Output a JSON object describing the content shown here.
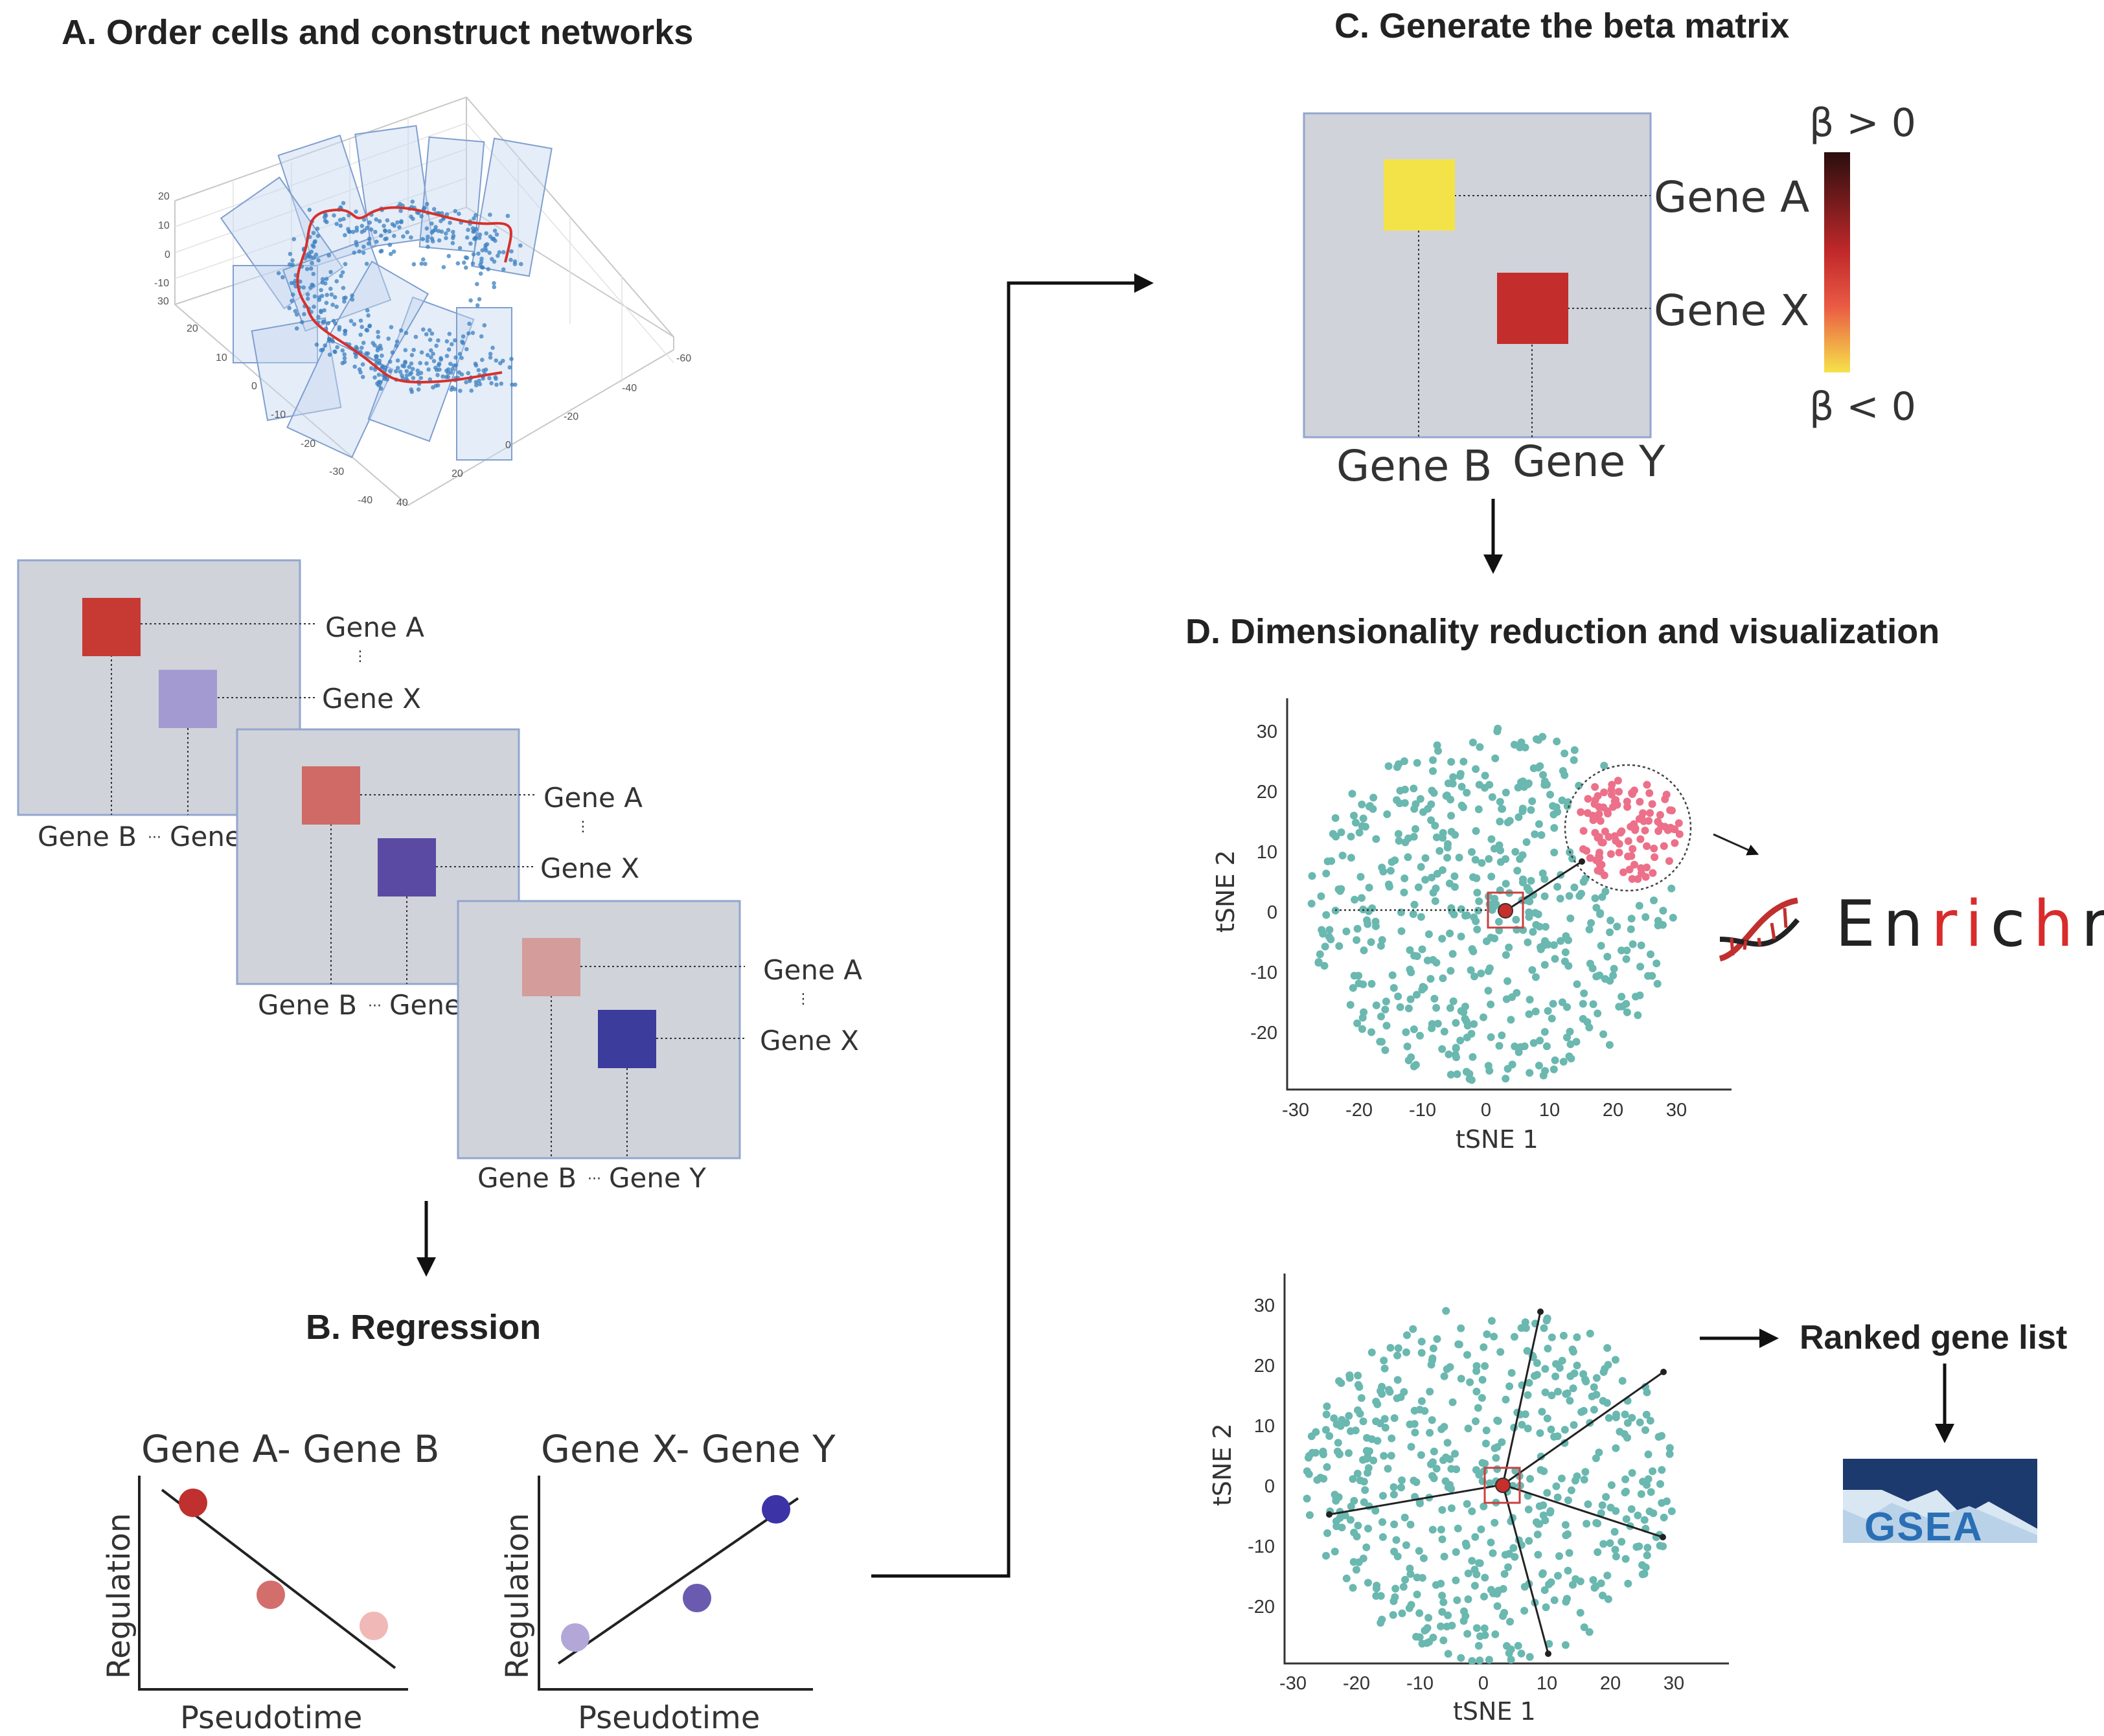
{
  "panels": {
    "a_title": "A. Order cells and construct networks",
    "b_title": "B. Regression",
    "c_title": "C. Generate the beta matrix",
    "d_title": "D. Dimensionality reduction and visualization"
  },
  "networks": {
    "gene_a": "Gene A",
    "gene_x": "Gene X",
    "gene_b": "Gene B",
    "gene_y": "Gene Y",
    "gene_truncated": "Gene",
    "ellipsis_h": "···",
    "ellipsis_v": "⋮",
    "cell_colors": [
      [
        "#c63a33",
        "#a39ad2"
      ],
      [
        "#cf6a66",
        "#5a4aa4"
      ],
      [
        "#d49c9a",
        "#3c3c9c"
      ]
    ]
  },
  "axis3d": {
    "ticks_a": [
      "20",
      "10",
      "0",
      "-10"
    ],
    "ticks_b": [
      "30",
      "20",
      "10",
      "0",
      "-10",
      "-20",
      "-30",
      "-40"
    ],
    "ticks_c": [
      "-60",
      "-40",
      "-20",
      "0",
      "20",
      "40"
    ]
  },
  "regression": {
    "plot1_title": "Gene A- Gene B",
    "plot2_title": "Gene X- Gene Y",
    "ylabel": "Regulation",
    "xlabel": "Pseudotime",
    "plot1_colors": [
      "#c0302e",
      "#d26e6c",
      "#f0b8b6"
    ],
    "plot2_colors": [
      "#b3a7d8",
      "#6a5bb0",
      "#3b33a6"
    ]
  },
  "beta_matrix": {
    "gene_a": "Gene A",
    "gene_x": "Gene X",
    "gene_b": "Gene B",
    "gene_y": "Gene Y",
    "legend_top": "β > 0",
    "legend_bottom": "β < 0",
    "cell_colors": [
      "#f4e348",
      "#c32e2c"
    ]
  },
  "tsne": {
    "xlabel": "tSNE 1",
    "ylabel": "tSNE 2",
    "xticks": [
      "-30",
      "-20",
      "-10",
      "0",
      "10",
      "20",
      "30"
    ],
    "yticks": [
      "30",
      "20",
      "10",
      "0",
      "-10",
      "-20"
    ],
    "point_color": "#6ab8b0",
    "cluster_color": "#ec7089"
  },
  "tools": {
    "enrichr_parts": [
      "En",
      "ri",
      "c",
      "h",
      "r"
    ],
    "enrichr_colors": [
      "#222222",
      "#d92b2b",
      "#222222",
      "#d92b2b",
      "#222222"
    ],
    "ranked_list": "Ranked gene list",
    "gsea": "GSEA"
  }
}
